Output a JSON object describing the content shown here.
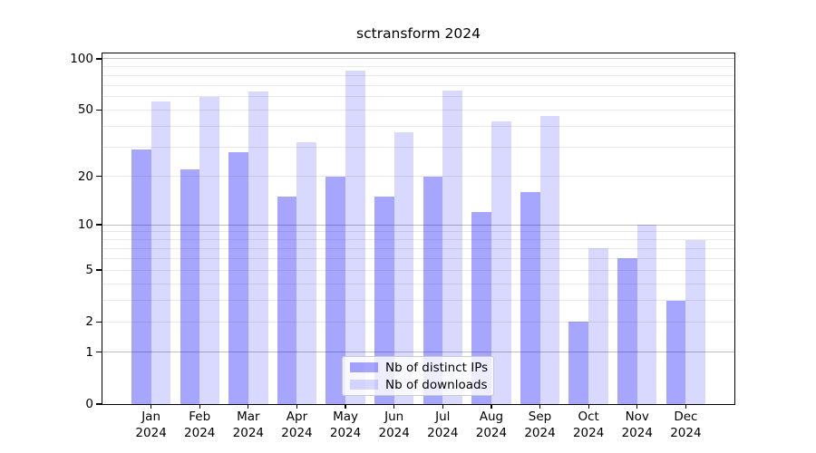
{
  "figure": {
    "title": "sctransform 2024"
  },
  "chart_data": {
    "type": "bar",
    "title": "sctransform 2024",
    "categories": [
      "Jan",
      "Feb",
      "Mar",
      "Apr",
      "May",
      "Jun",
      "Jul",
      "Aug",
      "Sep",
      "Oct",
      "Nov",
      "Dec"
    ],
    "category_year": "2024",
    "series": [
      {
        "name": "Nb of distinct IPs",
        "color": "rgba(0,0,255,0.35)",
        "values": [
          29,
          22,
          28,
          15,
          20,
          15,
          20,
          12,
          16,
          2,
          6,
          3
        ]
      },
      {
        "name": "Nb of downloads",
        "color": "rgba(0,0,255,0.15)",
        "values": [
          56,
          60,
          64,
          32,
          85,
          37,
          65,
          43,
          46,
          7,
          10,
          8
        ]
      }
    ],
    "xlabel": "",
    "ylabel": "",
    "yscale": "log1p",
    "ylim": [
      0,
      108
    ],
    "y_ticks": [
      100,
      50,
      20,
      10,
      5,
      2,
      1,
      0
    ],
    "y_major_gridlines": [
      100,
      10,
      1
    ],
    "y_minor_gridlines": [
      90,
      80,
      70,
      60,
      40,
      30,
      9,
      8,
      7,
      6,
      4,
      3
    ],
    "grid": true,
    "legend_position": "lower center"
  },
  "legend": {
    "items": [
      {
        "label": "Nb of distinct IPs",
        "color": "rgba(0,0,255,0.35)"
      },
      {
        "label": "Nb of downloads",
        "color": "rgba(0,0,255,0.15)"
      }
    ]
  },
  "colors": {
    "spine": "#000000",
    "grid_major": "#bdbdbd",
    "grid_minor": "#e8e8e8",
    "text": "#000000"
  }
}
